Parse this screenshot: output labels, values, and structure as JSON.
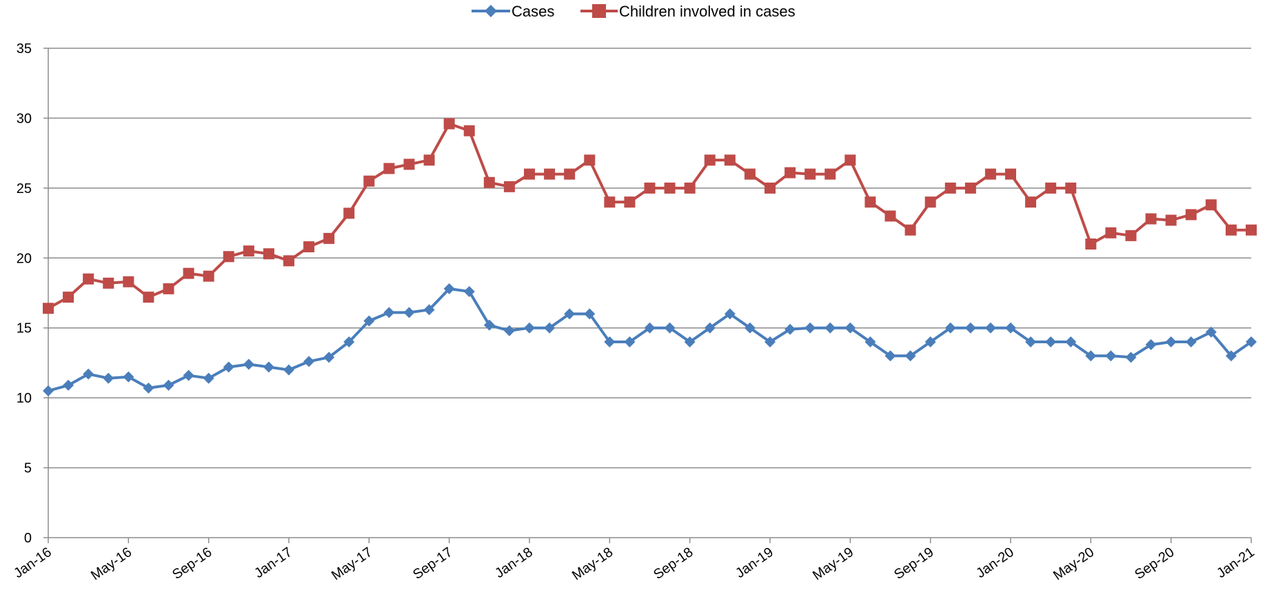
{
  "chart_data": {
    "type": "line",
    "title": "",
    "xlabel": "",
    "ylabel": "",
    "ylim": [
      0,
      35
    ],
    "yticks": [
      0,
      5,
      10,
      15,
      20,
      25,
      30,
      35
    ],
    "grid": true,
    "legend_position": "top-center",
    "x_tick_labels": [
      "Jan-16",
      "May-16",
      "Sep-16",
      "Jan-17",
      "May-17",
      "Sep-17",
      "Jan-18",
      "May-18",
      "Sep-18",
      "Jan-19",
      "May-19",
      "Sep-19",
      "Jan-20",
      "May-20",
      "Sep-20",
      "Jan-21"
    ],
    "x_tick_step_months": 4,
    "x": [
      "Jan-16",
      "Feb-16",
      "Mar-16",
      "Apr-16",
      "May-16",
      "Jun-16",
      "Jul-16",
      "Aug-16",
      "Sep-16",
      "Oct-16",
      "Nov-16",
      "Dec-16",
      "Jan-17",
      "Feb-17",
      "Mar-17",
      "Apr-17",
      "May-17",
      "Jun-17",
      "Jul-17",
      "Aug-17",
      "Sep-17",
      "Oct-17",
      "Nov-17",
      "Dec-17",
      "Jan-18",
      "Feb-18",
      "Mar-18",
      "Apr-18",
      "May-18",
      "Jun-18",
      "Jul-18",
      "Aug-18",
      "Sep-18",
      "Oct-18",
      "Nov-18",
      "Dec-18",
      "Jan-19",
      "Feb-19",
      "Mar-19",
      "Apr-19",
      "May-19",
      "Jun-19",
      "Jul-19",
      "Aug-19",
      "Sep-19",
      "Oct-19",
      "Nov-19",
      "Dec-19",
      "Jan-20",
      "Feb-20",
      "Mar-20",
      "Apr-20",
      "May-20",
      "Jun-20",
      "Jul-20",
      "Aug-20",
      "Sep-20",
      "Oct-20",
      "Nov-20",
      "Dec-20",
      "Jan-21"
    ],
    "series": [
      {
        "name": "Cases",
        "color": "#4a7ebb",
        "marker": "diamond",
        "values": [
          10.5,
          10.9,
          11.7,
          11.4,
          11.5,
          10.7,
          10.9,
          11.6,
          11.4,
          12.2,
          12.4,
          12.2,
          12.0,
          12.6,
          12.9,
          14.0,
          15.5,
          16.1,
          16.1,
          16.3,
          17.8,
          17.6,
          15.2,
          14.8,
          15.0,
          15.0,
          16.0,
          16.0,
          14.0,
          14.0,
          15.0,
          15.0,
          14.0,
          15.0,
          16.0,
          15.0,
          14.0,
          14.9,
          15.0,
          15.0,
          15.0,
          14.0,
          13.0,
          13.0,
          14.0,
          15.0,
          15.0,
          15.0,
          15.0,
          14.0,
          14.0,
          14.0,
          13.0,
          13.0,
          12.9,
          13.8,
          14.0,
          14.0,
          14.7,
          13.0,
          14.0
        ]
      },
      {
        "name": "Children involved in cases",
        "color": "#be4b48",
        "marker": "square",
        "values": [
          16.4,
          17.2,
          18.5,
          18.2,
          18.3,
          17.2,
          17.8,
          18.9,
          18.7,
          20.1,
          20.5,
          20.3,
          19.8,
          20.8,
          21.4,
          23.2,
          25.5,
          26.4,
          26.7,
          27.0,
          29.6,
          29.1,
          25.4,
          25.1,
          26.0,
          26.0,
          26.0,
          27.0,
          24.0,
          24.0,
          25.0,
          25.0,
          25.0,
          27.0,
          27.0,
          26.0,
          25.0,
          26.1,
          26.0,
          26.0,
          27.0,
          24.0,
          23.0,
          22.0,
          24.0,
          25.0,
          25.0,
          26.0,
          26.0,
          24.0,
          25.0,
          25.0,
          21.0,
          21.8,
          21.6,
          22.8,
          22.7,
          23.1,
          23.8,
          22.0,
          22.0
        ]
      }
    ]
  }
}
